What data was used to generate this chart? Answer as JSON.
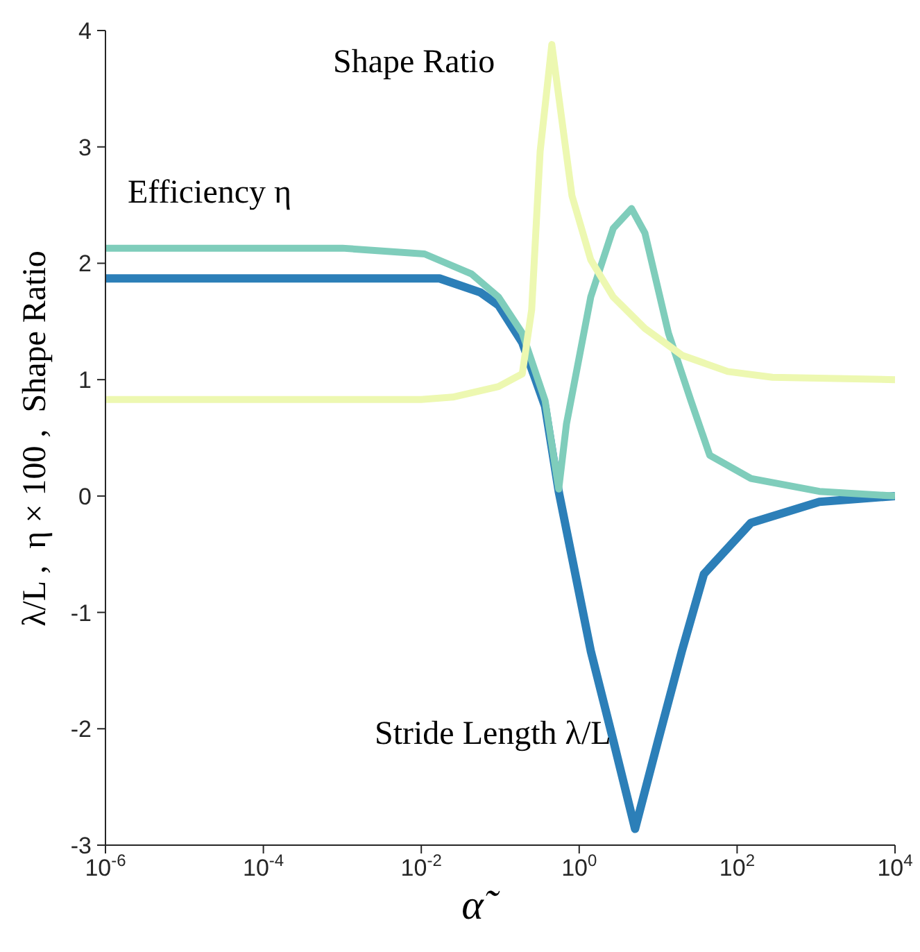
{
  "chart_data": {
    "type": "line",
    "xlabel": "α̃",
    "ylabel": "λ/L ,  η × 100 ,  Shape Ratio",
    "log": "x",
    "grid": false,
    "legend": false,
    "marker": "none",
    "line_style": "solid",
    "xlim": [
      1e-06,
      10000
    ],
    "ylim": [
      -3,
      4
    ],
    "xticks": [
      {
        "value": 1e-06,
        "label": "10$^{-6}$"
      },
      {
        "value": 0.0001,
        "label": "10$^{-4}$"
      },
      {
        "value": 0.01,
        "label": "10$^{-2}$"
      },
      {
        "value": 1,
        "label": "10$^{0}$"
      },
      {
        "value": 100,
        "label": "10$^{2}$"
      },
      {
        "value": 10000,
        "label": "10$^{4}$"
      }
    ],
    "yticks": [
      -3,
      -2,
      -1,
      0,
      1,
      2,
      3,
      4
    ],
    "series": [
      {
        "name": "Stride Length λ/L",
        "color": "#2c7fb8",
        "x": [
          1e-06,
          0.017,
          0.056,
          0.095,
          0.19,
          0.37,
          0.55,
          1.4,
          2.7,
          5.1,
          10,
          20,
          38,
          150,
          1100,
          10000
        ],
        "values": [
          1.87,
          1.87,
          1.75,
          1.64,
          1.32,
          0.77,
          0.04,
          -1.33,
          -2.1,
          -2.86,
          -2.1,
          -1.33,
          -0.67,
          -0.23,
          -0.05,
          0
        ]
      },
      {
        "name": "Efficiency η",
        "color": "#7fcdbb",
        "x": [
          1e-06,
          0.001,
          0.011,
          0.043,
          0.095,
          0.19,
          0.37,
          0.55,
          0.69,
          1.4,
          2.7,
          4.6,
          6.8,
          13.5,
          26,
          45,
          150,
          1100,
          10000
        ],
        "values": [
          2.13,
          2.13,
          2.08,
          1.91,
          1.71,
          1.4,
          0.82,
          0.06,
          0.62,
          1.71,
          2.3,
          2.47,
          2.26,
          1.4,
          0.82,
          0.35,
          0.15,
          0.04,
          0
        ]
      },
      {
        "name": "Shape Ratio",
        "color": "#edf8b1",
        "x": [
          1e-06,
          0.01,
          0.025,
          0.095,
          0.19,
          0.25,
          0.32,
          0.45,
          0.81,
          1.4,
          2.7,
          6.8,
          20,
          76,
          280,
          10000
        ],
        "values": [
          0.83,
          0.83,
          0.85,
          0.94,
          1.05,
          1.6,
          2.96,
          3.88,
          2.58,
          2.03,
          1.71,
          1.44,
          1.21,
          1.07,
          1.02,
          1
        ]
      }
    ]
  }
}
